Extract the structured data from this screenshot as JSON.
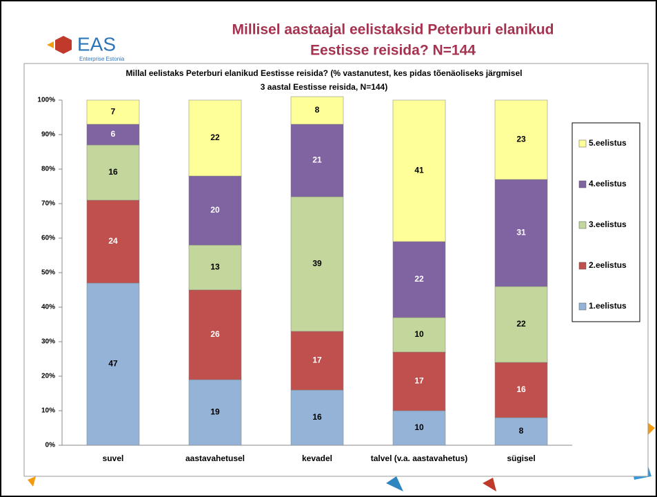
{
  "header": {
    "title": [
      "Millisel aastaajal eelistaksid Peterburi elanikud",
      "Eestisse reisida? N=144"
    ],
    "logo": "EAS",
    "logo_subtitle": "Enterprise Estonia"
  },
  "chart_data": {
    "type": "stacked_bar",
    "title": [
      "Millal eelistaks Peterburi elanikud Eestisse reisida? (% vastanutest, kes pidas tõenäoliseks järgmisel",
      "3 aastal Eestisse reisida, N=144)"
    ],
    "categories": [
      "suvel",
      "aastavahetusel",
      "kevadel",
      "talvel (v.a. aastavahetus)",
      "sügisel"
    ],
    "series": [
      {
        "name": "1.eelistus",
        "color": "#95b3d7",
        "label_color": "#000000",
        "values": [
          47,
          19,
          16,
          10,
          8
        ]
      },
      {
        "name": "2.eelistus",
        "color": "#c0504d",
        "label_color": "#ffffff",
        "values": [
          24,
          26,
          17,
          17,
          16
        ]
      },
      {
        "name": "3.eelistus",
        "color": "#c3d69b",
        "label_color": "#000000",
        "values": [
          16,
          13,
          39,
          10,
          22
        ]
      },
      {
        "name": "4.eelistus",
        "color": "#8064a2",
        "label_color": "#ffffff",
        "values": [
          6,
          20,
          21,
          22,
          31
        ]
      },
      {
        "name": "5.eelistus",
        "color": "#ffff99",
        "label_color": "#000000",
        "values": [
          7,
          22,
          8,
          41,
          23
        ]
      }
    ],
    "ylim": [
      0,
      100
    ],
    "yticks": [
      {
        "value": 0,
        "label": "0%"
      },
      {
        "value": 10,
        "label": "10%"
      },
      {
        "value": 20,
        "label": "20%"
      },
      {
        "value": 30,
        "label": "30%"
      },
      {
        "value": 40,
        "label": "40%"
      },
      {
        "value": 50,
        "label": "50%"
      },
      {
        "value": 60,
        "label": "60%"
      },
      {
        "value": 70,
        "label": "70%"
      },
      {
        "value": 80,
        "label": "80%"
      },
      {
        "value": 90,
        "label": "90%"
      },
      {
        "value": 100,
        "label": "100%"
      }
    ],
    "legend": "right"
  }
}
